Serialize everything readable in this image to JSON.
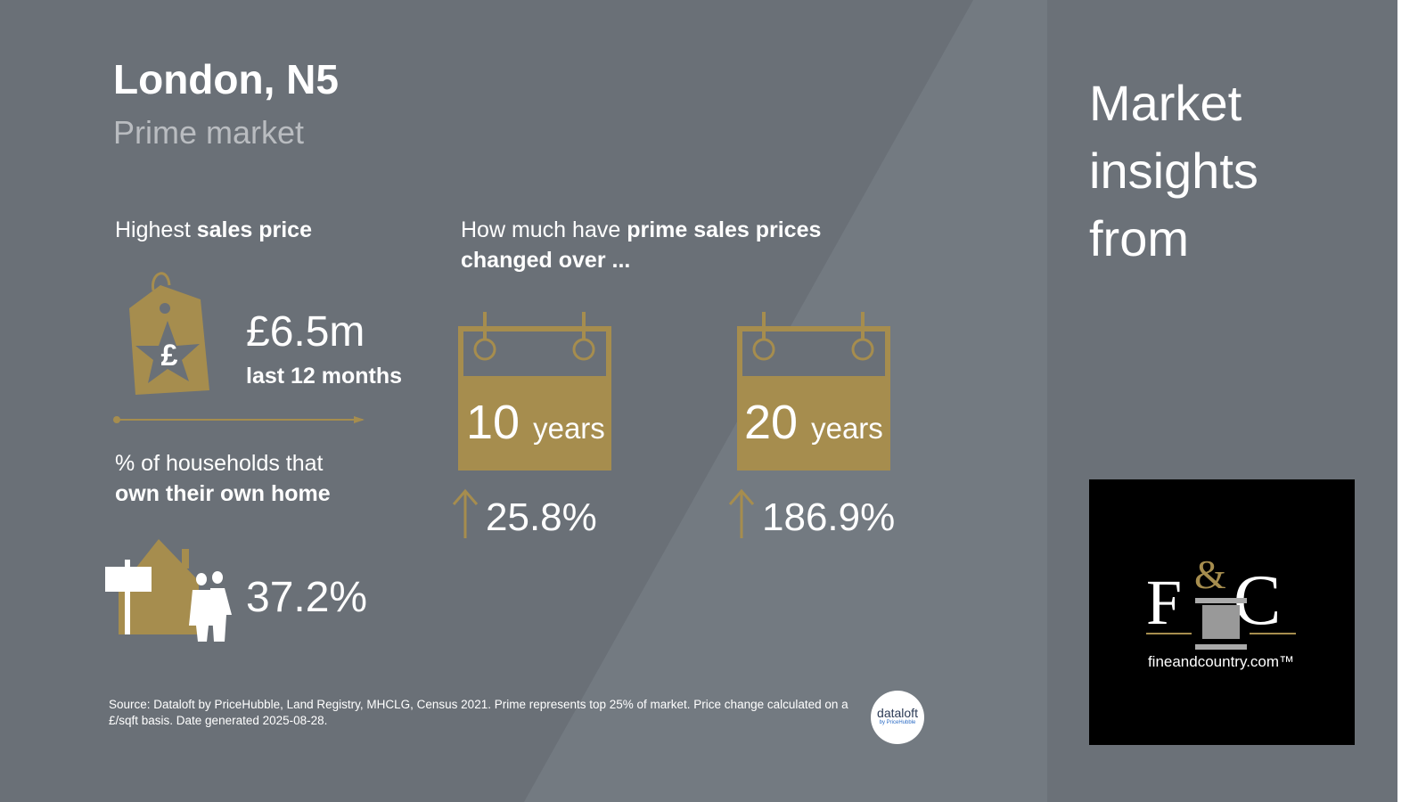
{
  "header": {
    "title": "London, N5",
    "subtitle": "Prime market"
  },
  "highest": {
    "label_pre": "Highest ",
    "label_bold": "sales price",
    "value": "£6.5m",
    "period": "last 12 months",
    "icon": "price-tag-icon",
    "tag_symbol": "£"
  },
  "ownership": {
    "label_pre": "% of households that",
    "label_bold": "own their own home",
    "value": "37.2%",
    "icon": "house-sale-icon"
  },
  "change": {
    "label_pre": "How much have ",
    "label_bold": "prime sales prices changed over ...",
    "items": [
      {
        "num": "10",
        "unit": "years",
        "value": "25.8%"
      },
      {
        "num": "20",
        "unit": "years",
        "value": "186.9%"
      }
    ]
  },
  "side": {
    "title": "Market insights from",
    "logo_text": "F&C",
    "logo_url": "fineandcountry.com™"
  },
  "footer": {
    "source": "Source: Dataloft by PriceHubble, Land Registry, MHCLG, Census 2021. Prime represents top 25% of market. Price change calculated on a £/sqft basis. Date generated 2025-08-28.",
    "badge_main": "dataloft",
    "badge_sub": "by PriceHubble"
  },
  "colors": {
    "gold": "#a68d4e",
    "bg": "#6a7077"
  }
}
